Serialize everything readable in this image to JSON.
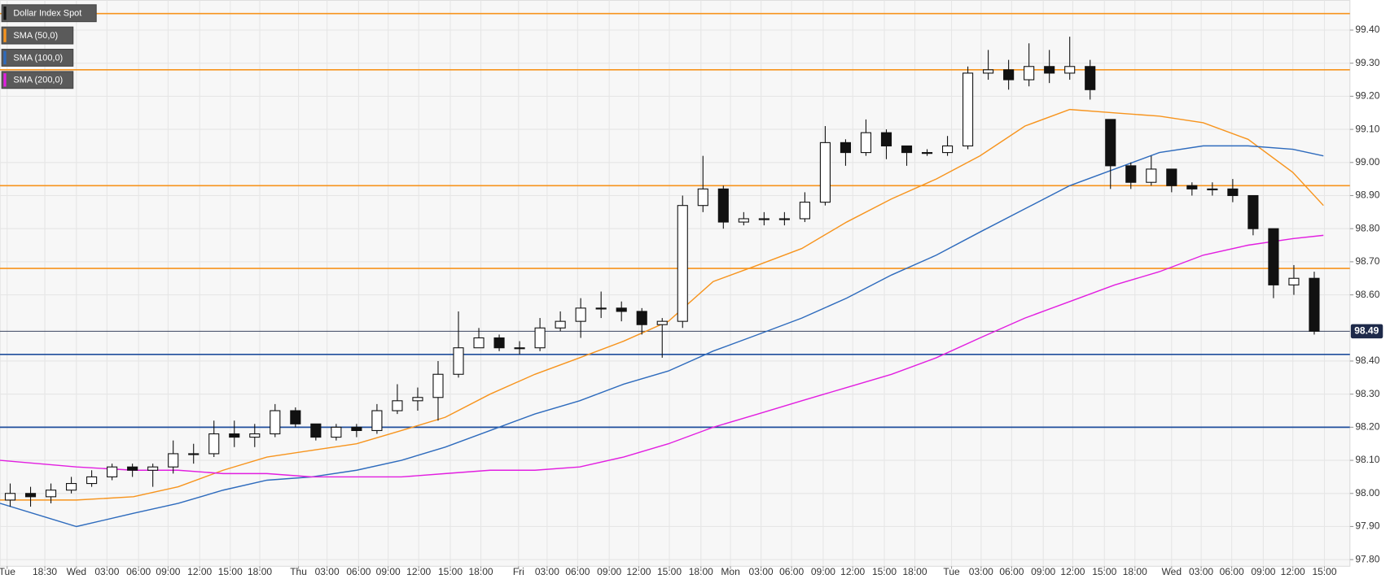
{
  "chart_data": {
    "type": "candlestick",
    "grid": true,
    "xlim": [
      0,
      132.5
    ],
    "ylim": [
      97.78,
      99.49
    ],
    "xticks": [
      {
        "value": 0.7,
        "label": "Tue"
      },
      {
        "value": 4.4,
        "label": "18:30"
      },
      {
        "value": 7.5,
        "label": "Wed"
      },
      {
        "value": 10.5,
        "label": "03:00"
      },
      {
        "value": 13.6,
        "label": "06:00"
      },
      {
        "value": 16.5,
        "label": "09:00"
      },
      {
        "value": 19.6,
        "label": "12:00"
      },
      {
        "value": 22.6,
        "label": "15:00"
      },
      {
        "value": 25.5,
        "label": "18:00"
      },
      {
        "value": 29.3,
        "label": "Thu"
      },
      {
        "value": 32.1,
        "label": "03:00"
      },
      {
        "value": 35.2,
        "label": "06:00"
      },
      {
        "value": 38.1,
        "label": "09:00"
      },
      {
        "value": 41.1,
        "label": "12:00"
      },
      {
        "value": 44.2,
        "label": "15:00"
      },
      {
        "value": 47.2,
        "label": "18:00"
      },
      {
        "value": 50.9,
        "label": "Fri"
      },
      {
        "value": 53.7,
        "label": "03:00"
      },
      {
        "value": 56.7,
        "label": "06:00"
      },
      {
        "value": 59.8,
        "label": "09:00"
      },
      {
        "value": 62.7,
        "label": "12:00"
      },
      {
        "value": 65.7,
        "label": "15:00"
      },
      {
        "value": 68.8,
        "label": "18:00"
      },
      {
        "value": 71.7,
        "label": "Mon"
      },
      {
        "value": 74.7,
        "label": "03:00"
      },
      {
        "value": 77.7,
        "label": "06:00"
      },
      {
        "value": 80.8,
        "label": "09:00"
      },
      {
        "value": 83.7,
        "label": "12:00"
      },
      {
        "value": 86.8,
        "label": "15:00"
      },
      {
        "value": 89.8,
        "label": "18:00"
      },
      {
        "value": 93.4,
        "label": "Tue"
      },
      {
        "value": 96.3,
        "label": "03:00"
      },
      {
        "value": 99.3,
        "label": "06:00"
      },
      {
        "value": 102.4,
        "label": "09:00"
      },
      {
        "value": 105.3,
        "label": "12:00"
      },
      {
        "value": 108.4,
        "label": "15:00"
      },
      {
        "value": 111.4,
        "label": "18:00"
      },
      {
        "value": 115.0,
        "label": "Wed"
      },
      {
        "value": 117.9,
        "label": "03:00"
      },
      {
        "value": 120.9,
        "label": "06:00"
      },
      {
        "value": 124.0,
        "label": "09:00"
      },
      {
        "value": 126.9,
        "label": "12:00"
      },
      {
        "value": 130.0,
        "label": "15:00"
      }
    ],
    "yticks": [
      {
        "value": 99.4,
        "label": "99.40"
      },
      {
        "value": 99.3,
        "label": "99.30"
      },
      {
        "value": 99.2,
        "label": "99.20"
      },
      {
        "value": 99.1,
        "label": "99.10"
      },
      {
        "value": 99.0,
        "label": "99.00"
      },
      {
        "value": 98.9,
        "label": "98.90"
      },
      {
        "value": 98.8,
        "label": "98.80"
      },
      {
        "value": 98.7,
        "label": "98.70"
      },
      {
        "value": 98.6,
        "label": "98.60"
      },
      {
        "value": 98.4,
        "label": "98.40"
      },
      {
        "value": 98.3,
        "label": "98.30"
      },
      {
        "value": 98.2,
        "label": "98.20"
      },
      {
        "value": 98.1,
        "label": "98.10"
      },
      {
        "value": 98.0,
        "label": "98.00"
      },
      {
        "value": 97.9,
        "label": "97.90"
      },
      {
        "value": 97.8,
        "label": "97.80"
      }
    ],
    "candles": {
      "name": "Dollar Index Spot",
      "color": "#111111",
      "x": [
        1,
        3,
        5,
        7,
        9,
        11,
        13,
        15,
        17,
        19,
        21,
        23,
        25,
        27,
        29,
        31,
        33,
        35,
        37,
        39,
        41,
        43,
        45,
        47,
        49,
        51,
        53,
        55,
        57,
        59,
        61,
        63,
        65,
        67,
        69,
        71,
        73,
        75,
        77,
        79,
        81,
        83,
        85,
        87,
        89,
        91,
        93,
        95,
        97,
        99,
        101,
        103,
        105,
        107,
        109,
        111,
        113,
        115,
        117,
        119,
        121,
        123,
        125,
        127,
        129
      ],
      "open": [
        97.98,
        98.0,
        97.99,
        98.01,
        98.03,
        98.05,
        98.08,
        98.07,
        98.08,
        98.12,
        98.12,
        98.18,
        98.17,
        98.18,
        98.25,
        98.21,
        98.17,
        98.2,
        98.19,
        98.25,
        98.28,
        98.29,
        98.36,
        98.44,
        98.47,
        98.44,
        98.44,
        98.5,
        98.52,
        98.56,
        98.56,
        98.55,
        98.51,
        98.52,
        98.87,
        98.92,
        98.82,
        98.83,
        98.83,
        98.83,
        98.88,
        99.06,
        99.03,
        99.09,
        99.05,
        99.03,
        99.03,
        99.05,
        99.27,
        99.28,
        99.25,
        99.29,
        99.27,
        99.29,
        99.13,
        98.99,
        98.94,
        98.98,
        98.93,
        98.92,
        98.92,
        98.9,
        98.8,
        98.63,
        98.65
      ],
      "high": [
        98.03,
        98.02,
        98.03,
        98.05,
        98.07,
        98.09,
        98.09,
        98.09,
        98.16,
        98.15,
        98.22,
        98.22,
        98.21,
        98.27,
        98.26,
        98.21,
        98.21,
        98.21,
        98.27,
        98.33,
        98.32,
        98.4,
        98.55,
        98.5,
        98.48,
        98.46,
        98.53,
        98.55,
        98.59,
        98.61,
        98.58,
        98.56,
        98.53,
        98.9,
        99.02,
        98.93,
        98.85,
        98.85,
        98.85,
        98.91,
        99.11,
        99.07,
        99.13,
        99.1,
        99.05,
        99.04,
        99.08,
        99.29,
        99.34,
        99.31,
        99.36,
        99.34,
        99.38,
        99.31,
        99.13,
        99.0,
        99.02,
        98.98,
        98.94,
        98.94,
        98.95,
        98.9,
        98.8,
        98.69,
        98.67
      ],
      "low": [
        97.96,
        97.96,
        97.97,
        98.0,
        98.02,
        98.04,
        98.05,
        98.02,
        98.06,
        98.09,
        98.11,
        98.14,
        98.14,
        98.17,
        98.2,
        98.16,
        98.16,
        98.17,
        98.18,
        98.24,
        98.25,
        98.22,
        98.35,
        98.44,
        98.43,
        98.42,
        98.43,
        98.49,
        98.47,
        98.53,
        98.52,
        98.48,
        98.41,
        98.5,
        98.85,
        98.8,
        98.81,
        98.81,
        98.81,
        98.82,
        98.87,
        98.99,
        99.02,
        99.01,
        98.99,
        99.02,
        99.02,
        99.04,
        99.25,
        99.22,
        99.23,
        99.24,
        99.25,
        99.19,
        98.92,
        98.92,
        98.93,
        98.91,
        98.9,
        98.9,
        98.88,
        98.78,
        98.59,
        98.6,
        98.48
      ],
      "close": [
        98.0,
        97.99,
        98.01,
        98.03,
        98.05,
        98.08,
        98.07,
        98.08,
        98.12,
        98.12,
        98.18,
        98.17,
        98.18,
        98.25,
        98.21,
        98.17,
        98.2,
        98.19,
        98.25,
        98.28,
        98.29,
        98.36,
        98.44,
        98.47,
        98.44,
        98.44,
        98.5,
        98.52,
        98.56,
        98.56,
        98.55,
        98.51,
        98.52,
        98.87,
        98.92,
        98.82,
        98.83,
        98.83,
        98.83,
        98.88,
        99.06,
        99.03,
        99.09,
        99.05,
        99.03,
        99.03,
        99.05,
        99.27,
        99.28,
        99.25,
        99.29,
        99.27,
        99.29,
        99.22,
        98.99,
        98.94,
        98.98,
        98.93,
        98.92,
        98.92,
        98.9,
        98.8,
        98.63,
        98.65,
        98.49
      ]
    },
    "line_x": [
      0,
      7.5,
      13.1,
      17.5,
      21.9,
      26.2,
      30.6,
      35,
      39.4,
      43.7,
      48.1,
      52.5,
      56.9,
      61.2,
      65.6,
      70,
      74.4,
      78.7,
      83.1,
      87.5,
      91.9,
      96.2,
      100.6,
      105,
      109.4,
      113.8,
      118.1,
      122.5,
      126.9,
      129.9
    ],
    "series": [
      {
        "name": "SMA (50,0)",
        "color": "#f7941d",
        "values": [
          97.98,
          97.98,
          97.99,
          98.02,
          98.07,
          98.11,
          98.13,
          98.15,
          98.19,
          98.23,
          98.3,
          98.36,
          98.41,
          98.46,
          98.52,
          98.64,
          98.69,
          98.74,
          98.82,
          98.89,
          98.95,
          99.02,
          99.11,
          99.16,
          99.15,
          99.14,
          99.12,
          99.07,
          98.97,
          98.87
        ]
      },
      {
        "name": "SMA (100,0)",
        "color": "#2e6bbd",
        "values": [
          97.97,
          97.9,
          97.94,
          97.97,
          98.01,
          98.04,
          98.05,
          98.07,
          98.1,
          98.14,
          98.19,
          98.24,
          98.28,
          98.33,
          98.37,
          98.43,
          98.48,
          98.53,
          98.59,
          98.66,
          98.72,
          98.79,
          98.86,
          98.93,
          98.98,
          99.03,
          99.05,
          99.05,
          99.04,
          99.02
        ]
      },
      {
        "name": "SMA (200,0)",
        "color": "#e21ee0",
        "values": [
          98.1,
          98.08,
          98.07,
          98.07,
          98.06,
          98.06,
          98.05,
          98.05,
          98.05,
          98.06,
          98.07,
          98.07,
          98.08,
          98.11,
          98.15,
          98.2,
          98.24,
          98.28,
          98.32,
          98.36,
          98.41,
          98.47,
          98.53,
          98.58,
          98.63,
          98.67,
          98.72,
          98.75,
          98.77,
          98.78
        ]
      }
    ],
    "levels": [
      {
        "value": 99.45,
        "color": "#f7941d"
      },
      {
        "value": 99.28,
        "color": "#f7941d"
      },
      {
        "value": 98.93,
        "color": "#f7941d"
      },
      {
        "value": 98.68,
        "color": "#f7941d"
      },
      {
        "value": 98.42,
        "color": "#1f4e9c"
      },
      {
        "value": 98.2,
        "color": "#1f4e9c"
      }
    ],
    "last_price": 98.49,
    "last_price_color": "#1e2a4a"
  }
}
